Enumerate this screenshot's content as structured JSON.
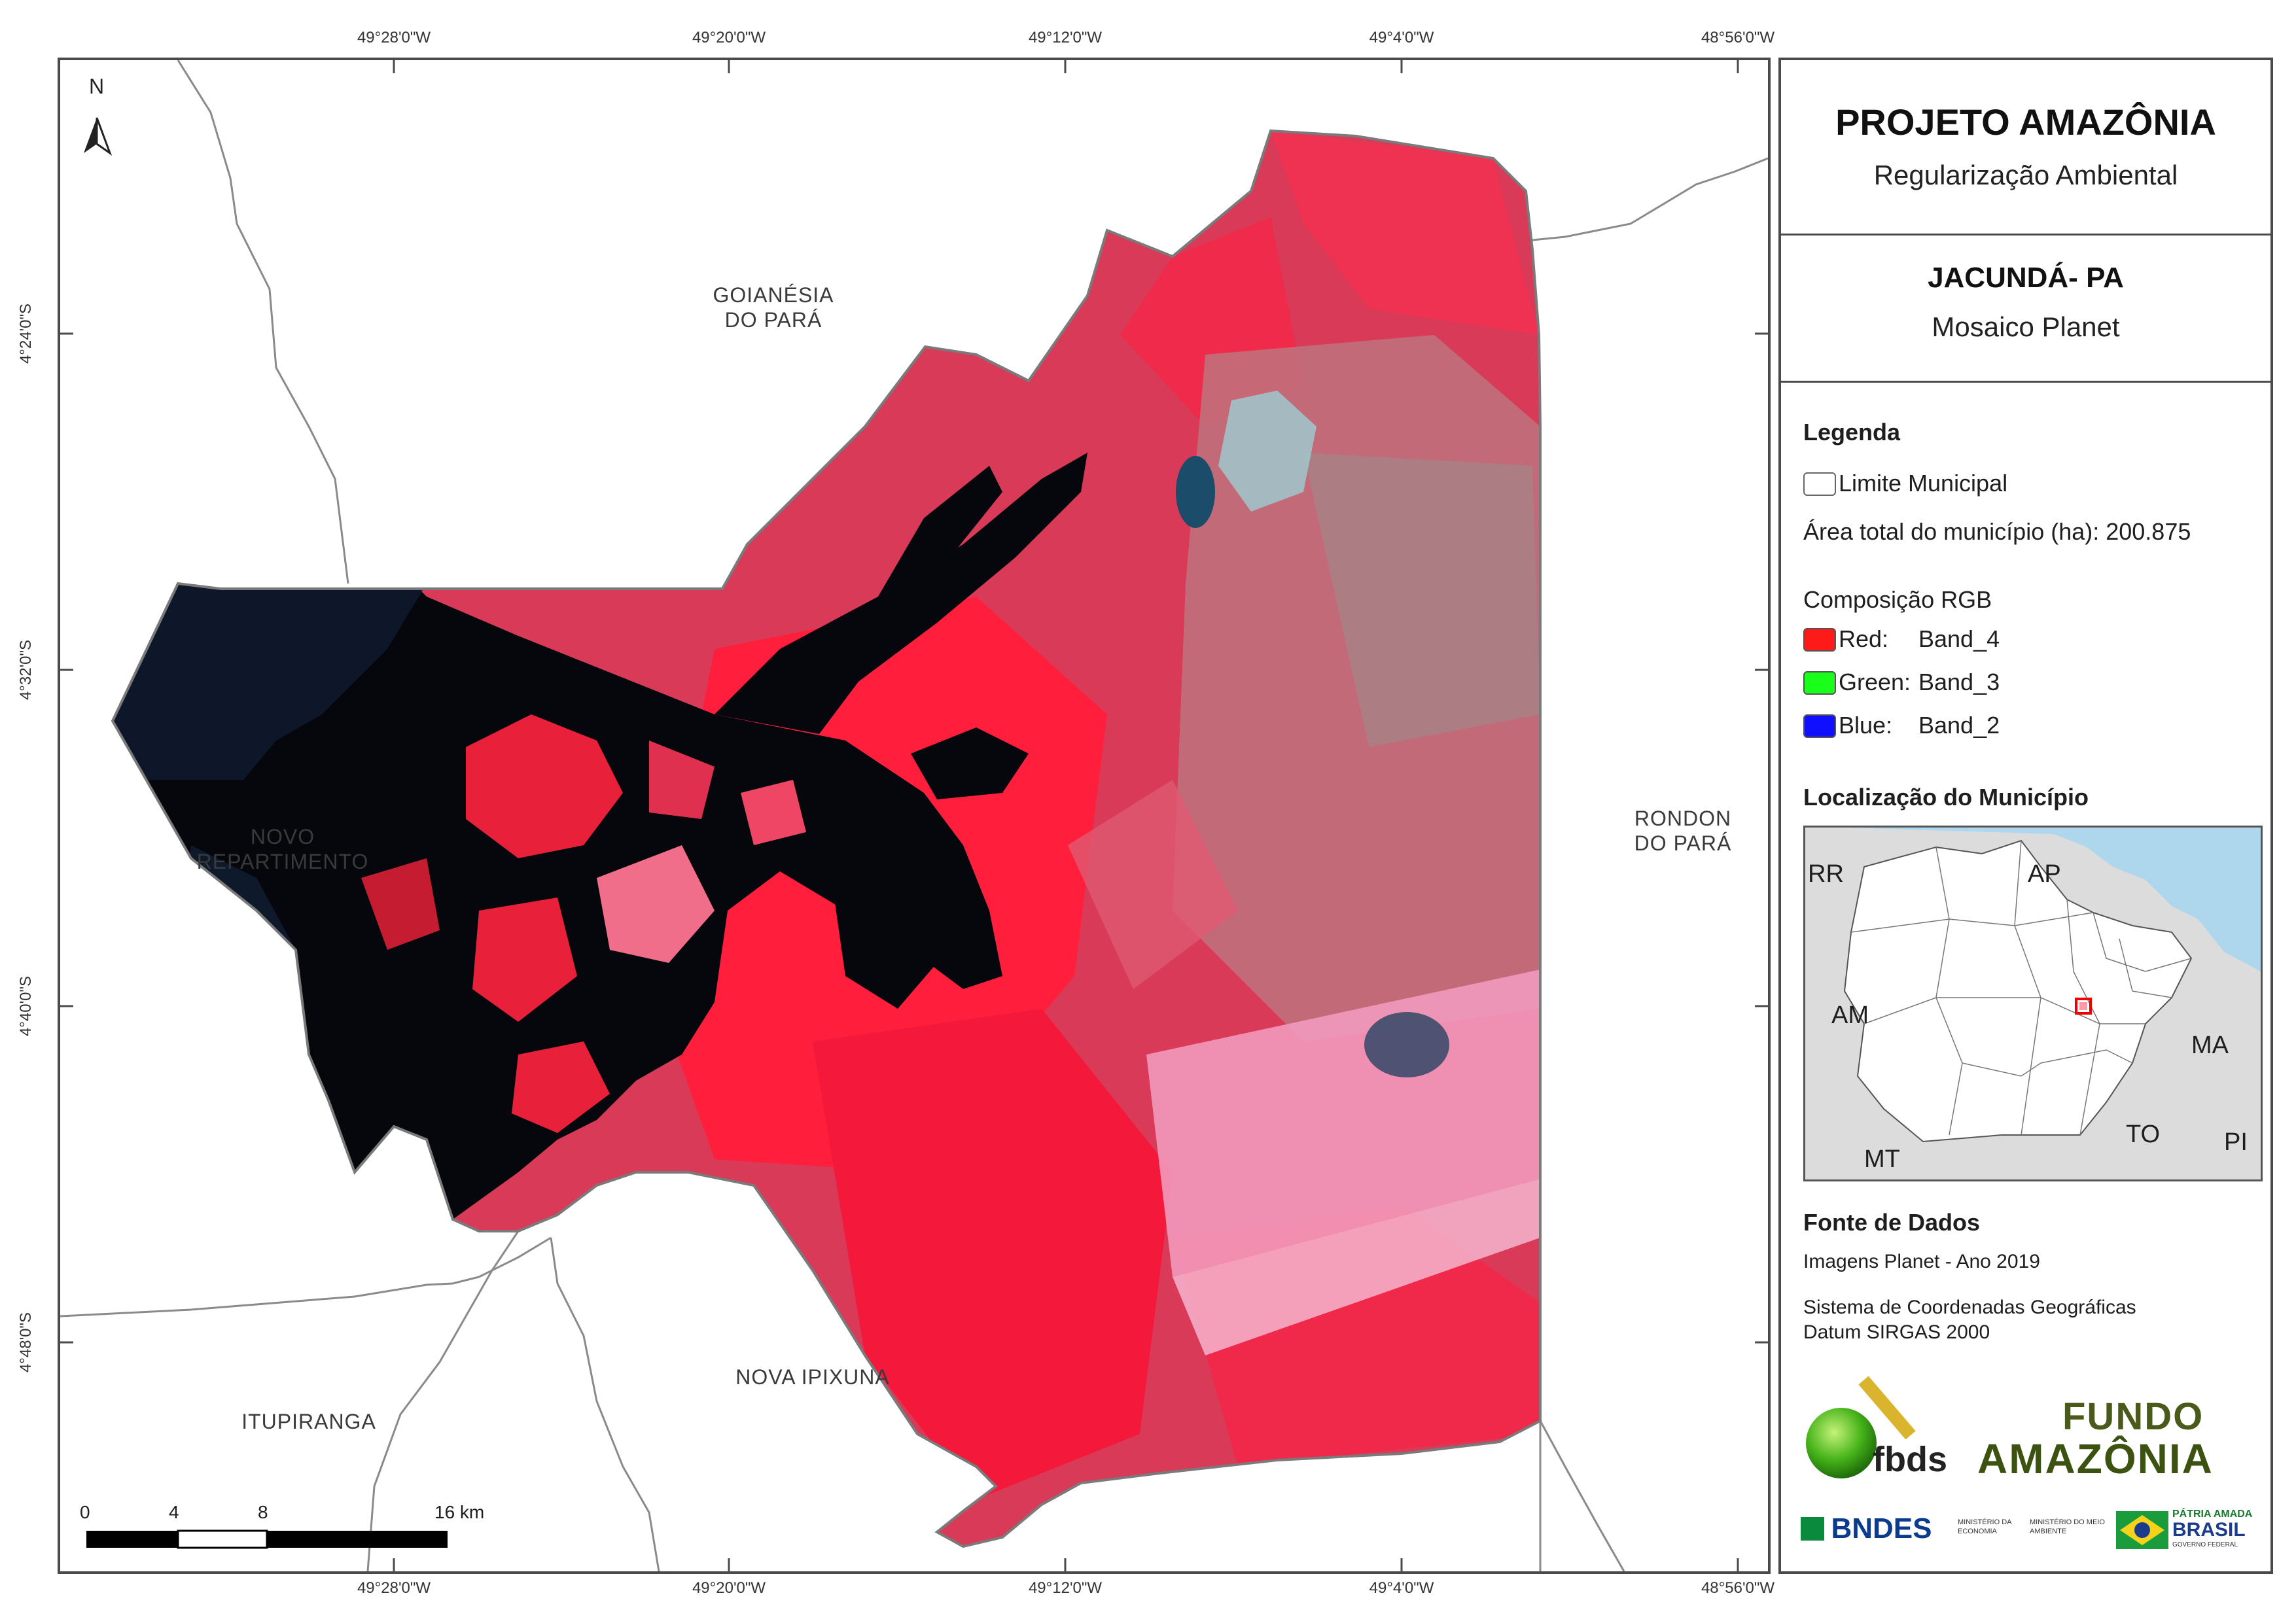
{
  "header": {
    "project_title": "PROJETO AMAZÔNIA",
    "project_subtitle": "Regularização Ambiental",
    "municipality_title": "JACUNDÁ- PA",
    "map_subtitle": "Mosaico Planet"
  },
  "legend": {
    "heading": "Legenda",
    "boundary_label": "Limite Municipal",
    "area_text": "Área total do município (ha): 200.875",
    "rgb_heading": "Composição RGB",
    "bands": [
      {
        "channel": "Red:",
        "band": "Band_4",
        "color": "#ff1a1a"
      },
      {
        "channel": "Green:",
        "band": "Band_3",
        "color": "#1aff1a"
      },
      {
        "channel": "Blue:",
        "band": "Band_2",
        "color": "#1010ff"
      }
    ]
  },
  "location": {
    "heading": "Localização do Município",
    "states": [
      "RR",
      "AP",
      "AM",
      "MA",
      "TO",
      "PI",
      "MT"
    ]
  },
  "sources": {
    "heading": "Fonte de Dados",
    "lines": [
      "Imagens Planet - Ano 2019",
      "Sistema de Coordenadas Geográficas",
      "Datum SIRGAS 2000"
    ]
  },
  "logos": {
    "fbds": "fbds",
    "fundo_line1": "FUNDO",
    "fundo_line2": "AMAZÔNIA",
    "bndes": "BNDES",
    "ministerio_economia": "MINISTÉRIO DA ECONOMIA",
    "ministerio_meio_ambiente": "MINISTÉRIO DO MEIO AMBIENTE",
    "patria_line1": "PÁTRIA AMADA",
    "patria_line2": "BRASIL",
    "patria_line3": "GOVERNO FEDERAL"
  },
  "map": {
    "north_label": "N",
    "longitudes": [
      "49°28'0\"W",
      "49°20'0\"W",
      "49°12'0\"W",
      "49°4'0\"W",
      "48°56'0\"W"
    ],
    "latitudes": [
      "4°24'0\"S",
      "4°32'0\"S",
      "4°40'0\"S",
      "4°48'0\"S"
    ],
    "neighbors": {
      "goianesia_1": "GOIANÉSIA",
      "goianesia_2": "DO PARÁ",
      "novo_1": "NOVO",
      "novo_2": "REPARTIMENTO",
      "rondon_1": "RONDON",
      "rondon_2": "DO PARÁ",
      "nova_ipixuna": "NOVA IPIXUNA",
      "itupiranga": "ITUPIRANGA"
    },
    "scale_labels": [
      "0",
      "4",
      "8",
      "16 km"
    ]
  },
  "colors": {
    "vegetation_red": "#e8203a",
    "water_black": "#05070c",
    "cloud_pink": "#f2a6c4",
    "frame": "#4a4a4a"
  }
}
